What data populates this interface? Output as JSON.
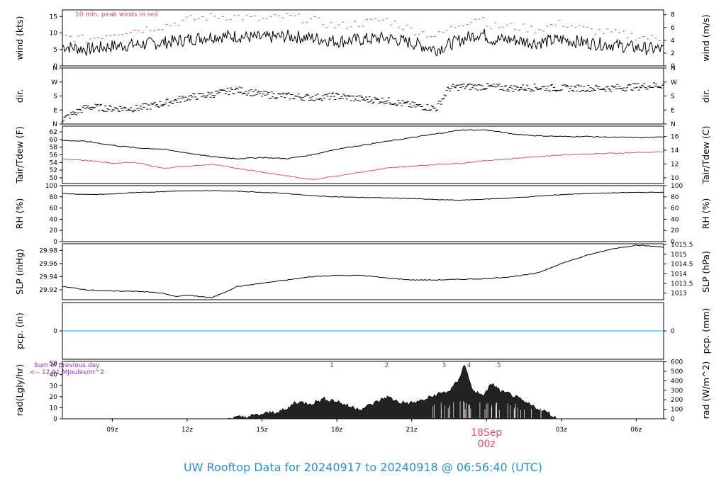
{
  "title": "UW Rooftop Data for 20240917  to  20240918 @ 06:56:40  (UTC)",
  "colors": {
    "line": "#000000",
    "red": "#df536b",
    "blue": "#2297e6",
    "purple": "#9b30d9",
    "title": "#2a8fd0"
  },
  "time_axis": {
    "range_hours": [
      7.0,
      31.1
    ],
    "ticks": [
      {
        "h": 9,
        "label": "09z"
      },
      {
        "h": 12,
        "label": "12z"
      },
      {
        "h": 15,
        "label": "15z"
      },
      {
        "h": 18,
        "label": "18z"
      },
      {
        "h": 21,
        "label": "21z"
      },
      {
        "h": 24,
        "label": "00z"
      },
      {
        "h": 27,
        "label": "03z"
      },
      {
        "h": 30,
        "label": "06z"
      }
    ],
    "day_marker": {
      "h": 24,
      "date": "18Sep",
      "label": "00z"
    }
  },
  "chart_data": [
    {
      "id": "wind",
      "type": "line",
      "ylabel_left": "wind (kts)",
      "ylabel_right": "wind (m/s)",
      "ylim": [
        0,
        17
      ],
      "left_ticks": [
        "0",
        "5",
        "10",
        "15"
      ],
      "left_values": [
        0,
        5,
        10,
        15
      ],
      "right_ticks": [
        "0",
        "2",
        "4",
        "6",
        "8"
      ],
      "right_values": [
        0,
        3.89,
        7.78,
        11.66,
        15.55
      ],
      "annotation": "10 min. peak winds in red",
      "series": [
        {
          "x": [
            7.0,
            8,
            9,
            10,
            11,
            12,
            13,
            14,
            15,
            16,
            17,
            18,
            19,
            20,
            21,
            22,
            23,
            23.8,
            24.2,
            25,
            26,
            27,
            28,
            29,
            30,
            31.1
          ],
          "y": [
            6,
            5,
            6,
            6.5,
            7,
            8,
            9,
            9,
            8.5,
            9,
            8.5,
            7.5,
            8,
            8.5,
            7,
            5,
            8,
            10,
            8,
            8,
            7,
            8,
            7,
            6.5,
            5.5,
            5
          ]
        },
        {
          "x": [
            7.0,
            8,
            9,
            10,
            11,
            12,
            13,
            14,
            15,
            16,
            17,
            18,
            19,
            20,
            21,
            22,
            23,
            23.8,
            24.2,
            25,
            26,
            27,
            28,
            29,
            30,
            31.1
          ],
          "y": [
            9,
            8,
            10,
            11,
            12,
            14,
            15,
            15,
            14,
            15,
            14,
            12,
            13,
            14,
            11,
            9,
            13,
            15,
            12,
            12,
            11,
            13,
            11,
            10,
            9,
            8
          ]
        }
      ]
    },
    {
      "id": "dir",
      "type": "scatter",
      "ylabel_left": "dir.",
      "ylabel_right": "dir.",
      "ylim": [
        0,
        360
      ],
      "left_ticks": [
        "N",
        "E",
        "S",
        "W",
        "N"
      ],
      "left_values": [
        0,
        90,
        180,
        270,
        360
      ],
      "right_ticks": [
        "N",
        "E",
        "S",
        "W",
        "N"
      ],
      "right_values": [
        0,
        90,
        180,
        270,
        360
      ],
      "series": [
        {
          "x": [
            7.0,
            7.5,
            8,
            9,
            10,
            11,
            12,
            13,
            14,
            15,
            16,
            17,
            18,
            19,
            20,
            21,
            21.5,
            22,
            22.5,
            23,
            24,
            25,
            26,
            27,
            28,
            29,
            30,
            31.1
          ],
          "y": [
            30,
            70,
            110,
            100,
            100,
            130,
            170,
            190,
            220,
            190,
            180,
            170,
            180,
            160,
            150,
            120,
            110,
            100,
            230,
            240,
            240,
            230,
            235,
            230,
            230,
            230,
            240,
            250
          ]
        }
      ]
    },
    {
      "id": "temp",
      "type": "line",
      "ylabel_left": "Tair/Tdew (F)",
      "ylabel_right": "Tair/Tdew (C)",
      "ylim": [
        48.5,
        63.5
      ],
      "left_ticks": [
        "50",
        "52",
        "54",
        "56",
        "58",
        "60",
        "62"
      ],
      "left_values": [
        50,
        52,
        54,
        56,
        58,
        60,
        62
      ],
      "right_ticks": [
        "10",
        "12",
        "14",
        "16"
      ],
      "right_values": [
        50,
        53.6,
        57.2,
        60.8
      ],
      "series": [
        {
          "x": [
            7.0,
            8,
            9,
            10,
            11,
            12,
            13,
            14,
            15,
            16,
            17,
            18,
            19,
            20,
            21,
            22,
            23,
            24,
            25,
            26,
            27,
            28,
            29,
            30,
            31.1
          ],
          "y": [
            59.8,
            59.5,
            58.5,
            57.8,
            57.5,
            56.5,
            55.5,
            55.0,
            55.3,
            55.0,
            56.0,
            57.5,
            58.5,
            59.5,
            60.5,
            61.5,
            62.5,
            62.5,
            61.5,
            61.0,
            60.8,
            60.8,
            60.6,
            60.5,
            60.6
          ]
        },
        {
          "x": [
            7.0,
            8,
            9,
            10,
            11,
            12,
            13,
            14,
            15,
            16,
            17,
            18,
            19,
            20,
            21,
            22,
            23,
            24,
            25,
            26,
            27,
            28,
            29,
            30,
            31.1
          ],
          "y": [
            55.0,
            54.5,
            53.8,
            54.0,
            52.5,
            53.0,
            53.5,
            52.5,
            51.5,
            50.5,
            49.5,
            50.5,
            51.5,
            52.5,
            53.0,
            53.5,
            53.8,
            54.5,
            55.0,
            55.5,
            56.0,
            56.2,
            56.4,
            56.6,
            56.8
          ]
        }
      ]
    },
    {
      "id": "rh",
      "type": "line",
      "ylabel_left": "RH (%)",
      "ylabel_right": "RH (%)",
      "ylim": [
        0,
        100
      ],
      "left_ticks": [
        "0",
        "20",
        "40",
        "60",
        "80",
        "100"
      ],
      "left_values": [
        0,
        20,
        40,
        60,
        80,
        100
      ],
      "right_ticks": [
        "0",
        "20",
        "40",
        "60",
        "80",
        "100"
      ],
      "right_values": [
        0,
        20,
        40,
        60,
        80,
        100
      ],
      "series": [
        {
          "x": [
            7.0,
            8,
            9,
            10,
            11,
            12,
            13,
            14,
            15,
            16,
            17,
            18,
            19,
            20,
            21,
            22,
            23,
            24,
            25,
            26,
            27,
            28,
            29,
            30,
            31.1
          ],
          "y": [
            86,
            84,
            85,
            88,
            89,
            91,
            91,
            90,
            88,
            86,
            82,
            80,
            79,
            78,
            77,
            75,
            74,
            76,
            78,
            81,
            84,
            86,
            87,
            88,
            88
          ]
        }
      ]
    },
    {
      "id": "slp",
      "type": "line",
      "ylabel_left": "SLP (inHg)",
      "ylabel_right": "SLP (hPa)",
      "ylim": [
        29.905,
        29.99
      ],
      "left_ticks": [
        "29.92",
        "29.94",
        "29.96",
        "29.98"
      ],
      "left_values": [
        29.92,
        29.94,
        29.96,
        29.98
      ],
      "right_ticks": [
        "1013",
        "1013.5",
        "1014",
        "1014.5",
        "1015",
        "1015.5"
      ],
      "right_values": [
        29.915,
        29.9297,
        29.9445,
        29.9593,
        29.974,
        29.9888
      ],
      "series": [
        {
          "x": [
            7.0,
            8,
            9,
            10,
            11,
            11.5,
            12,
            13,
            14,
            15,
            16,
            17,
            18,
            19,
            20,
            21,
            22,
            23,
            24,
            25,
            26,
            27,
            28,
            29,
            30,
            31.1
          ],
          "y": [
            29.925,
            29.92,
            29.918,
            29.918,
            29.915,
            29.91,
            29.912,
            29.908,
            29.925,
            29.93,
            29.935,
            29.94,
            29.942,
            29.942,
            29.938,
            29.935,
            29.935,
            29.936,
            29.937,
            29.94,
            29.945,
            29.96,
            29.972,
            29.982,
            29.988,
            29.985
          ]
        }
      ]
    },
    {
      "id": "pcp",
      "type": "line",
      "ylabel_left": "pcp. (in)",
      "ylabel_right": "pcp. (mm)",
      "ylim": [
        -1,
        1
      ],
      "left_ticks": [
        "0"
      ],
      "left_values": [
        0
      ],
      "right_ticks": [
        "0"
      ],
      "right_values": [
        0
      ],
      "series": [
        {
          "x": [
            7.0,
            31.1
          ],
          "y": [
            0,
            0
          ]
        }
      ]
    },
    {
      "id": "rad",
      "type": "area",
      "ylabel_left": "rad(Lgly/hr)",
      "ylabel_right": "rad (W/m^2)",
      "ylim": [
        0,
        52
      ],
      "left_ticks": [
        "0",
        "10",
        "20",
        "30",
        "40",
        "50"
      ],
      "left_values": [
        0,
        10,
        20,
        30,
        40,
        50
      ],
      "right_ticks": [
        "0",
        "100",
        "200",
        "300",
        "400",
        "500",
        "600"
      ],
      "right_values": [
        0,
        8.6,
        17.2,
        25.8,
        34.4,
        43.0,
        51.6
      ],
      "note_lines": [
        "Sum of previous day",
        "<-- 12.91 MJoules/m^2"
      ],
      "markers": [
        {
          "h": 17.8,
          "label": "1"
        },
        {
          "h": 20.0,
          "label": "2"
        },
        {
          "h": 22.3,
          "label": "3"
        },
        {
          "h": 23.3,
          "label": "4"
        },
        {
          "h": 24.5,
          "label": "5"
        }
      ],
      "series": [
        {
          "x": [
            7.0,
            13.5,
            14.5,
            15.5,
            16.0,
            16.3,
            17.0,
            17.5,
            18.0,
            18.5,
            19.0,
            19.5,
            20.0,
            20.5,
            21.0,
            21.5,
            22.0,
            22.5,
            22.9,
            23.1,
            23.4,
            23.8,
            24.0,
            24.2,
            24.6,
            25.0,
            25.5,
            26.0,
            26.5,
            26.8,
            31.1
          ],
          "y": [
            0,
            0,
            2,
            6,
            8,
            15,
            14,
            18,
            16,
            11,
            9,
            14,
            20,
            15,
            14,
            17,
            22,
            25,
            35,
            51,
            28,
            20,
            25,
            32,
            24,
            22,
            15,
            10,
            5,
            0,
            0
          ]
        }
      ]
    }
  ]
}
